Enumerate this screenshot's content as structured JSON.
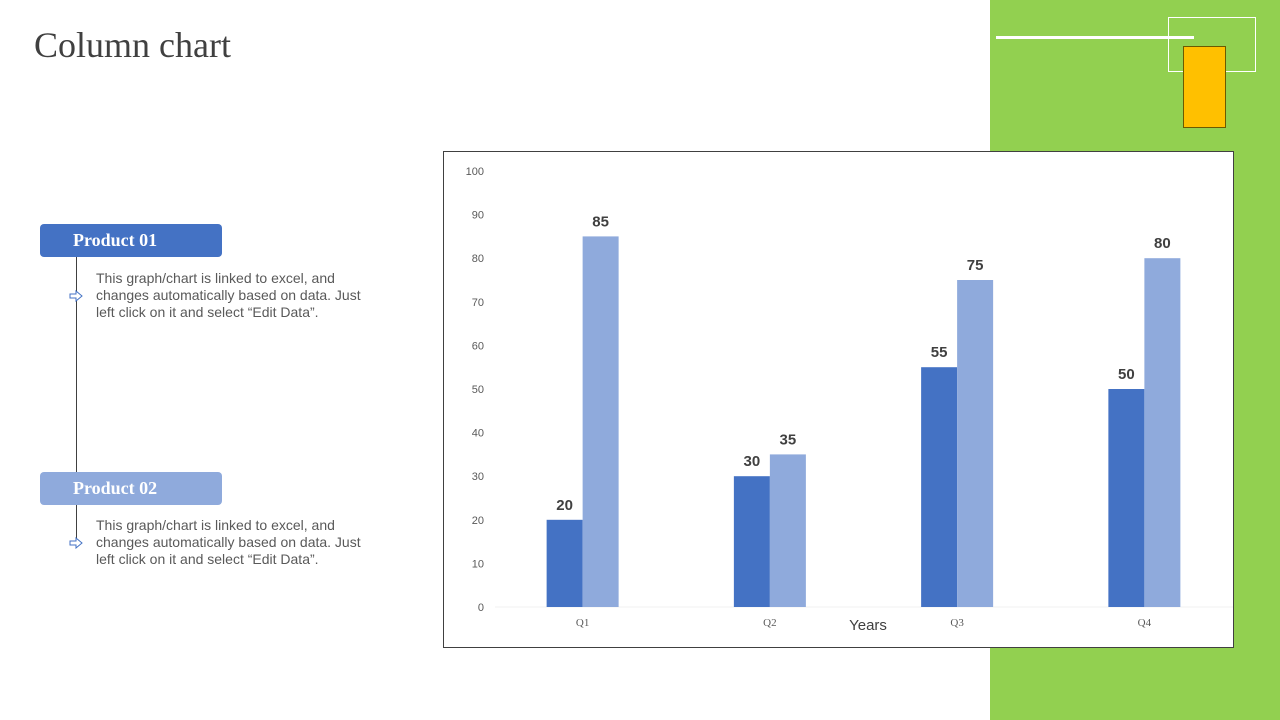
{
  "page": {
    "title": "Column chart"
  },
  "legend_items": [
    {
      "label": "Product 01",
      "description": "This graph/chart is linked to excel, and changes automatically based on data. Just left click on it and select “Edit Data”."
    },
    {
      "label": "Product 02",
      "description": "This graph/chart is linked to excel, and changes automatically based on data. Just left click on it and select “Edit Data”."
    }
  ],
  "colors": {
    "product_01": "#4472c4",
    "product_02": "#8faadc",
    "accent_green": "#92d050",
    "accent_yellow": "#ffc000"
  },
  "icons": {
    "bullet": "arrow-right-outline-icon"
  },
  "chart_data": {
    "type": "bar",
    "categories": [
      "Q1",
      "Q2",
      "Q3",
      "Q4"
    ],
    "series": [
      {
        "values": [
          20,
          30,
          55,
          50
        ],
        "color": "#4472c4"
      },
      {
        "values": [
          85,
          35,
          75,
          80
        ],
        "color": "#8faadc"
      }
    ],
    "xlabel": "Years",
    "ylabel": "",
    "ylim": [
      0,
      100
    ],
    "yticks": [
      0,
      10,
      20,
      30,
      40,
      50,
      60,
      70,
      80,
      90,
      100
    ],
    "grid": false,
    "data_labels": true
  }
}
